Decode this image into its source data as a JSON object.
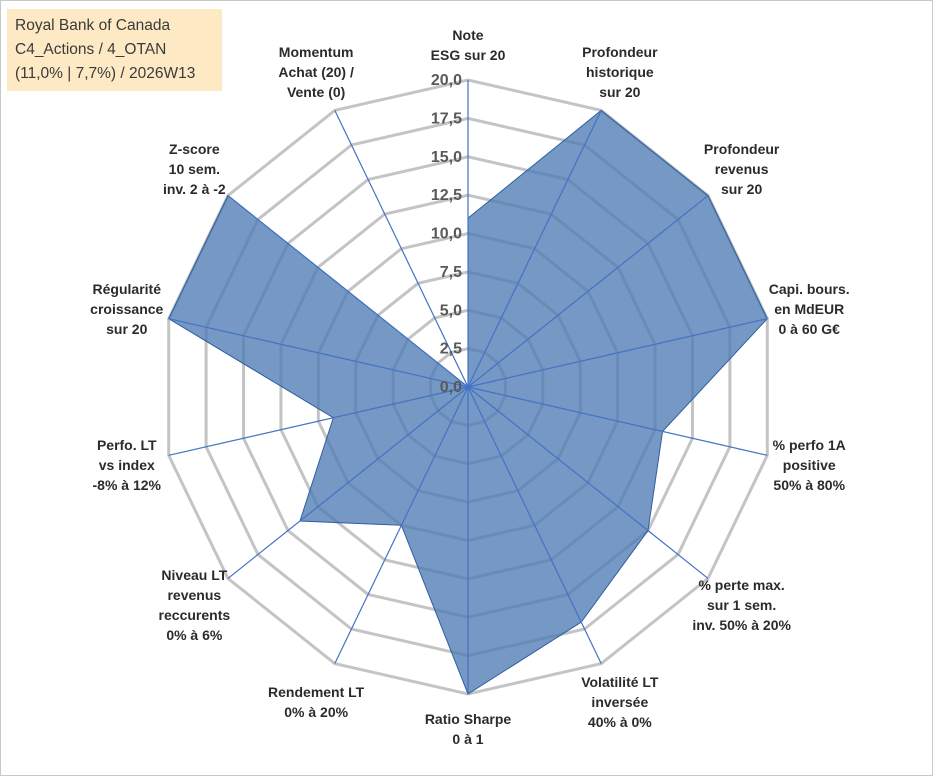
{
  "header": {
    "lines": [
      "Royal Bank of Canada",
      "C4_Actions / 4_OTAN",
      "(11,0% | 7,7%) / 2026W13"
    ]
  },
  "colors": {
    "grid": "#c4c4c4",
    "axis": "#4472c4",
    "fill": "#4e7bb5",
    "stroke": "#2e5f9e",
    "title_bg": "#fde9c4"
  },
  "chart_data": {
    "type": "radar",
    "scale": {
      "min": 0,
      "max": 20,
      "step": 2.5
    },
    "tick_labels": [
      "0,0",
      "2,5",
      "5,0",
      "7,5",
      "10,0",
      "12,5",
      "15,0",
      "17,5",
      "20,0"
    ],
    "axes": [
      {
        "lines": [
          "Note",
          "ESG sur 20"
        ],
        "value": 11
      },
      {
        "lines": [
          "Profondeur",
          "historique",
          "sur 20"
        ],
        "value": 20
      },
      {
        "lines": [
          "Profondeur",
          "revenus",
          "sur 20"
        ],
        "value": 20
      },
      {
        "lines": [
          "Capi. bours.",
          "en MdEUR",
          "0 à 60 G€"
        ],
        "value": 20
      },
      {
        "lines": [
          "% perfo 1A",
          "positive",
          "50% à 80%"
        ],
        "value": 13
      },
      {
        "lines": [
          "% perte max.",
          "sur 1 sem.",
          "inv. 50% à 20%"
        ],
        "value": 15
      },
      {
        "lines": [
          "Volatilité LT",
          "inversée",
          "40% à 0%"
        ],
        "value": 17
      },
      {
        "lines": [
          "Ratio Sharpe",
          "0 à 1"
        ],
        "value": 20
      },
      {
        "lines": [
          "Rendement LT",
          "0% à 20%"
        ],
        "value": 10
      },
      {
        "lines": [
          "Niveau LT",
          "revenus",
          "reccurents",
          "0% à 6%"
        ],
        "value": 14
      },
      {
        "lines": [
          "Perfo. LT",
          "vs index",
          "-8% à 12%"
        ],
        "value": 9
      },
      {
        "lines": [
          "Régularité",
          "croissance",
          "sur 20"
        ],
        "value": 20
      },
      {
        "lines": [
          "Z-score",
          "10 sem.",
          "inv. 2 à -2"
        ],
        "value": 20
      },
      {
        "lines": [
          "Momentum",
          "Achat (20) /",
          "Vente (0)"
        ],
        "value": 0
      }
    ]
  }
}
